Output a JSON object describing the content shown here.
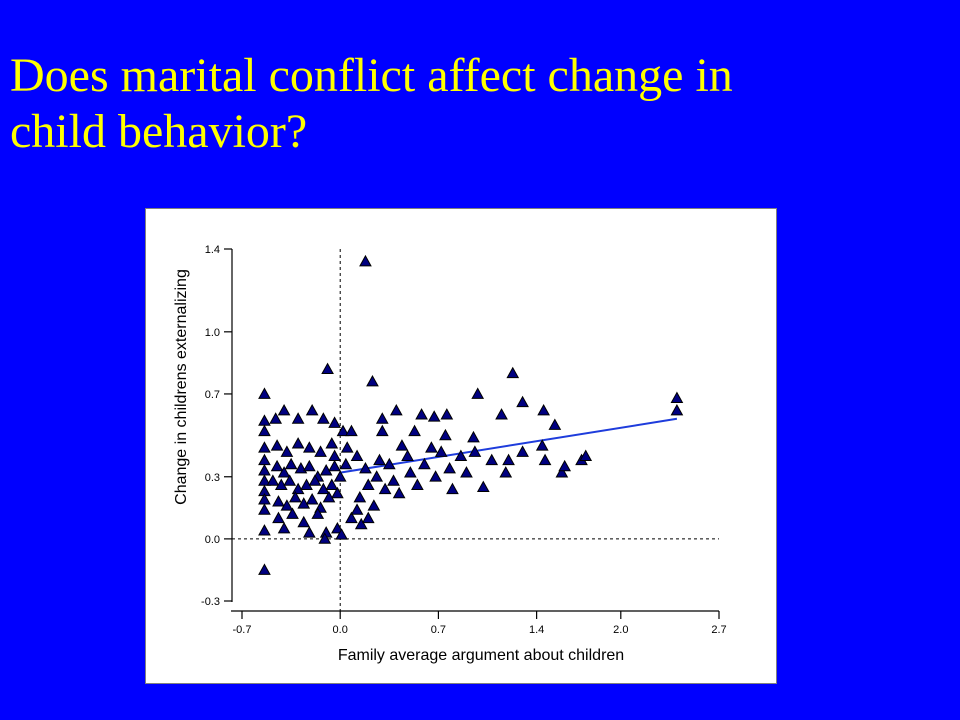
{
  "slide": {
    "title_line1": "Does marital conflict affect change in",
    "title_line2": "child behavior?"
  },
  "colors": {
    "background": "#0000ff",
    "title": "#ffff00",
    "marker_fill": "#000080",
    "marker_stroke": "#000000",
    "trend_line": "#1e3cdc"
  },
  "chart_data": {
    "type": "scatter",
    "title": "",
    "xlabel": "Family average argument about children",
    "ylabel": "Change in childrens externalizing",
    "xlim": [
      -0.7,
      2.7
    ],
    "ylim": [
      -0.3,
      1.4
    ],
    "xticks": [
      "-0.7",
      "0.0",
      "0.7",
      "1.4",
      "2.0",
      "2.7"
    ],
    "yticks": [
      "1.4",
      "1.0",
      "0.7",
      "0.3",
      "0.0",
      "-0.3"
    ],
    "reference_lines": {
      "x": 0.0,
      "y": 0.0,
      "style": "dashed"
    },
    "marker": "triangle",
    "trend_line": {
      "x": [
        0.0,
        2.4
      ],
      "y": [
        0.32,
        0.58
      ]
    },
    "points": [
      [
        0.18,
        1.34
      ],
      [
        -0.09,
        0.82
      ],
      [
        0.23,
        0.76
      ],
      [
        1.23,
        0.8
      ],
      [
        2.4,
        0.68
      ],
      [
        2.4,
        0.62
      ],
      [
        1.3,
        0.66
      ],
      [
        0.98,
        0.7
      ],
      [
        1.15,
        0.6
      ],
      [
        1.45,
        0.62
      ],
      [
        1.53,
        0.55
      ],
      [
        0.4,
        0.62
      ],
      [
        0.58,
        0.6
      ],
      [
        0.67,
        0.59
      ],
      [
        0.76,
        0.6
      ],
      [
        0.53,
        0.52
      ],
      [
        0.3,
        0.52
      ],
      [
        0.3,
        0.58
      ],
      [
        0.75,
        0.5
      ],
      [
        0.95,
        0.49
      ],
      [
        -0.54,
        0.7
      ],
      [
        -0.54,
        0.57
      ],
      [
        -0.54,
        0.52
      ],
      [
        -0.54,
        0.44
      ],
      [
        -0.54,
        0.38
      ],
      [
        -0.54,
        0.33
      ],
      [
        -0.54,
        0.28
      ],
      [
        -0.54,
        0.23
      ],
      [
        -0.54,
        0.19
      ],
      [
        -0.54,
        0.14
      ],
      [
        -0.54,
        0.04
      ],
      [
        -0.54,
        -0.15
      ],
      [
        -0.46,
        0.58
      ],
      [
        -0.4,
        0.62
      ],
      [
        -0.3,
        0.58
      ],
      [
        -0.2,
        0.62
      ],
      [
        -0.12,
        0.58
      ],
      [
        -0.04,
        0.56
      ],
      [
        0.02,
        0.52
      ],
      [
        0.08,
        0.52
      ],
      [
        -0.45,
        0.45
      ],
      [
        -0.38,
        0.42
      ],
      [
        -0.3,
        0.46
      ],
      [
        -0.22,
        0.44
      ],
      [
        -0.14,
        0.42
      ],
      [
        -0.06,
        0.46
      ],
      [
        -0.45,
        0.35
      ],
      [
        -0.4,
        0.32
      ],
      [
        -0.35,
        0.36
      ],
      [
        -0.28,
        0.34
      ],
      [
        -0.22,
        0.35
      ],
      [
        -0.16,
        0.3
      ],
      [
        -0.1,
        0.33
      ],
      [
        -0.04,
        0.35
      ],
      [
        -0.48,
        0.28
      ],
      [
        -0.42,
        0.26
      ],
      [
        -0.36,
        0.28
      ],
      [
        -0.3,
        0.24
      ],
      [
        -0.24,
        0.26
      ],
      [
        -0.18,
        0.28
      ],
      [
        -0.12,
        0.24
      ],
      [
        -0.06,
        0.26
      ],
      [
        -0.02,
        0.22
      ],
      [
        -0.44,
        0.18
      ],
      [
        -0.38,
        0.16
      ],
      [
        -0.32,
        0.2
      ],
      [
        -0.26,
        0.17
      ],
      [
        -0.2,
        0.19
      ],
      [
        -0.14,
        0.15
      ],
      [
        -0.08,
        0.2
      ],
      [
        -0.44,
        0.1
      ],
      [
        -0.34,
        0.12
      ],
      [
        -0.26,
        0.08
      ],
      [
        -0.16,
        0.12
      ],
      [
        -0.4,
        0.05
      ],
      [
        -0.22,
        0.03
      ],
      [
        -0.1,
        0.03
      ],
      [
        -0.02,
        0.05
      ],
      [
        -0.11,
        0.0
      ],
      [
        0.01,
        0.02
      ],
      [
        0.08,
        0.1
      ],
      [
        0.12,
        0.14
      ],
      [
        0.15,
        0.07
      ],
      [
        0.2,
        0.1
      ],
      [
        0.24,
        0.16
      ],
      [
        0.14,
        0.2
      ],
      [
        0.2,
        0.26
      ],
      [
        0.26,
        0.3
      ],
      [
        0.32,
        0.24
      ],
      [
        0.35,
        0.36
      ],
      [
        0.38,
        0.28
      ],
      [
        0.42,
        0.22
      ],
      [
        0.28,
        0.38
      ],
      [
        0.18,
        0.34
      ],
      [
        0.12,
        0.4
      ],
      [
        0.05,
        0.44
      ],
      [
        0.5,
        0.32
      ],
      [
        0.55,
        0.26
      ],
      [
        0.6,
        0.36
      ],
      [
        0.68,
        0.3
      ],
      [
        0.72,
        0.42
      ],
      [
        0.78,
        0.34
      ],
      [
        0.8,
        0.24
      ],
      [
        0.86,
        0.4
      ],
      [
        0.9,
        0.32
      ],
      [
        0.96,
        0.42
      ],
      [
        1.02,
        0.25
      ],
      [
        1.08,
        0.38
      ],
      [
        1.18,
        0.32
      ],
      [
        1.2,
        0.38
      ],
      [
        1.3,
        0.42
      ],
      [
        1.44,
        0.45
      ],
      [
        1.46,
        0.38
      ],
      [
        1.58,
        0.32
      ],
      [
        1.6,
        0.35
      ],
      [
        1.72,
        0.38
      ],
      [
        1.75,
        0.4
      ],
      [
        0.48,
        0.4
      ],
      [
        0.65,
        0.44
      ],
      [
        0.44,
        0.45
      ],
      [
        0.0,
        0.3
      ],
      [
        0.04,
        0.36
      ],
      [
        -0.04,
        0.4
      ]
    ]
  }
}
